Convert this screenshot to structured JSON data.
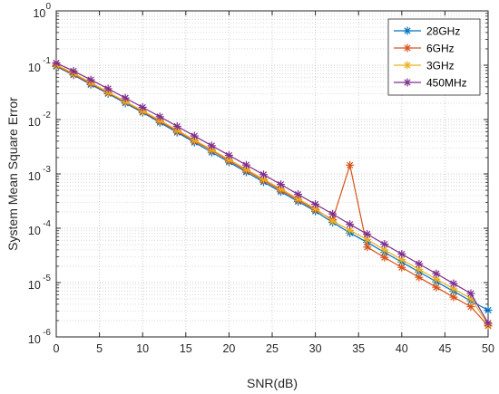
{
  "chart_data": {
    "type": "line",
    "xlabel": "SNR(dB)",
    "ylabel": "System Mean Square Error",
    "xlim": [
      0,
      50
    ],
    "ylim": [
      1e-06,
      1
    ],
    "yscale": "log",
    "grid": true,
    "legend_placement": "top-right",
    "x_ticks": [
      "0",
      "5",
      "10",
      "15",
      "20",
      "25",
      "30",
      "35",
      "40",
      "45",
      "50"
    ],
    "y_ticks": [
      {
        "base": "10",
        "exp": "0"
      },
      {
        "base": "10",
        "exp": "-1"
      },
      {
        "base": "10",
        "exp": "-2"
      },
      {
        "base": "10",
        "exp": "-3"
      },
      {
        "base": "10",
        "exp": "-4"
      },
      {
        "base": "10",
        "exp": "-5"
      },
      {
        "base": "10",
        "exp": "-6"
      }
    ],
    "x": [
      0,
      2,
      4,
      6,
      8,
      10,
      12,
      14,
      16,
      18,
      20,
      22,
      24,
      26,
      28,
      30,
      32,
      34,
      36,
      38,
      40,
      42,
      44,
      46,
      48,
      50
    ],
    "series": [
      {
        "name": "28GHz",
        "color": "#0072BD",
        "values": [
          0.095,
          0.066,
          0.044,
          0.03,
          0.02,
          0.0135,
          0.0088,
          0.0058,
          0.0038,
          0.0025,
          0.00165,
          0.00108,
          0.00071,
          0.00047,
          0.00031,
          0.000205,
          0.000128,
          8.2e-05,
          5.5e-05,
          3.6e-05,
          2.38e-05,
          1.57e-05,
          1.04e-05,
          6.9e-06,
          4.6e-06,
          3.1e-06
        ]
      },
      {
        "name": "6GHz",
        "color": "#D95319",
        "values": [
          0.098,
          0.068,
          0.046,
          0.031,
          0.021,
          0.014,
          0.0093,
          0.0061,
          0.004,
          0.0027,
          0.00175,
          0.00115,
          0.00076,
          0.0005,
          0.00033,
          0.000218,
          0.000144,
          0.00145,
          4.5e-05,
          2.9e-05,
          1.9e-05,
          1.25e-05,
          8.2e-06,
          5.4e-06,
          3.6e-06,
          1.6e-06
        ]
      },
      {
        "name": "3GHz",
        "color": "#EDB120",
        "values": [
          0.102,
          0.071,
          0.048,
          0.032,
          0.0215,
          0.0145,
          0.0097,
          0.0064,
          0.0042,
          0.0028,
          0.00185,
          0.00122,
          0.0008,
          0.00053,
          0.00035,
          0.00023,
          0.000136,
          9.2e-05,
          6.2e-05,
          4e-05,
          2.65e-05,
          1.75e-05,
          1.16e-05,
          7.7e-06,
          5.1e-06,
          1.7e-06
        ]
      },
      {
        "name": "450MHz",
        "color": "#7E2F8E",
        "values": [
          0.11,
          0.078,
          0.054,
          0.037,
          0.025,
          0.0168,
          0.0113,
          0.0075,
          0.005,
          0.0033,
          0.0022,
          0.00146,
          0.00097,
          0.00064,
          0.00042,
          0.000277,
          0.000183,
          0.000118,
          7.8e-05,
          5.1e-05,
          3.35e-05,
          2.21e-05,
          1.46e-05,
          9.6e-06,
          6.3e-06,
          1.8e-06
        ]
      }
    ]
  }
}
